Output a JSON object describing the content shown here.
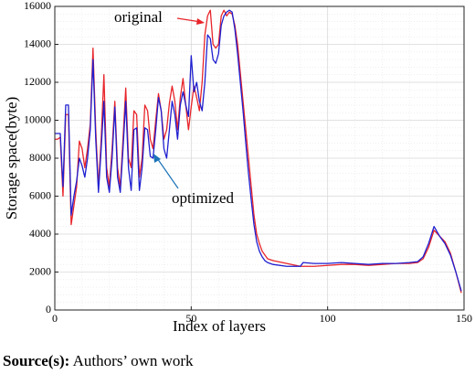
{
  "chart_data": {
    "type": "line",
    "xlabel": "Index of layers",
    "ylabel": "Storage space(byte)",
    "xlim": [
      0,
      150
    ],
    "ylim": [
      0,
      16000
    ],
    "xticks": [
      0,
      50,
      100,
      150
    ],
    "yticks": [
      0,
      2000,
      4000,
      6000,
      8000,
      10000,
      12000,
      14000,
      16000
    ],
    "grid": true,
    "annotations": [
      "original",
      "optimized"
    ],
    "x": [
      0,
      1,
      2,
      3,
      4,
      5,
      6,
      7,
      8,
      9,
      10,
      11,
      12,
      13,
      14,
      15,
      16,
      17,
      18,
      19,
      20,
      21,
      22,
      23,
      24,
      25,
      26,
      27,
      28,
      29,
      30,
      31,
      32,
      33,
      34,
      35,
      36,
      37,
      38,
      39,
      40,
      41,
      42,
      43,
      44,
      45,
      46,
      47,
      48,
      49,
      50,
      51,
      52,
      53,
      54,
      55,
      56,
      57,
      58,
      59,
      60,
      61,
      62,
      63,
      64,
      65,
      66,
      67,
      68,
      69,
      70,
      71,
      72,
      73,
      74,
      75,
      76,
      77,
      78,
      80,
      85,
      90,
      91,
      95,
      100,
      105,
      110,
      115,
      120,
      125,
      130,
      133,
      135,
      137,
      139,
      141,
      143,
      145,
      147,
      149
    ],
    "series": [
      {
        "name": "original",
        "color": "#e8242a",
        "values": [
          9000,
          9000,
          9100,
          6000,
          10300,
          10300,
          4500,
          5500,
          6500,
          8900,
          8500,
          7500,
          8500,
          9800,
          13800,
          9500,
          6500,
          9000,
          12400,
          7500,
          6500,
          8500,
          11000,
          7500,
          6500,
          9000,
          11700,
          8000,
          7500,
          10500,
          10300,
          7000,
          8000,
          10800,
          10500,
          9000,
          8500,
          10000,
          11400,
          10500,
          9000,
          9500,
          10900,
          11800,
          11000,
          9500,
          11200,
          12200,
          10800,
          9500,
          10700,
          11800,
          11200,
          10500,
          12000,
          14500,
          15500,
          15800,
          14000,
          13800,
          14000,
          15500,
          15800,
          15500,
          15700,
          15600,
          15000,
          14000,
          12500,
          11000,
          9500,
          8000,
          6500,
          5000,
          4000,
          3500,
          3100,
          2900,
          2700,
          2600,
          2450,
          2300,
          2300,
          2300,
          2350,
          2400,
          2400,
          2350,
          2400,
          2450,
          2450,
          2500,
          2700,
          3300,
          4200,
          3900,
          3600,
          3000,
          2000,
          900
        ]
      },
      {
        "name": "optimized",
        "color": "#1f1fd0",
        "values": [
          9300,
          9300,
          9300,
          6500,
          10800,
          10800,
          5000,
          6000,
          6800,
          8000,
          7600,
          7000,
          8000,
          9500,
          13200,
          9000,
          6200,
          8500,
          11000,
          7000,
          6200,
          8000,
          10700,
          7000,
          6200,
          8500,
          11000,
          7500,
          6300,
          9500,
          9600,
          6300,
          7500,
          9600,
          9500,
          8100,
          8000,
          9500,
          11200,
          10500,
          8500,
          8000,
          9500,
          11000,
          10300,
          9000,
          10800,
          11500,
          10800,
          10200,
          13400,
          11500,
          12000,
          11000,
          10500,
          12000,
          14500,
          14300,
          13200,
          13000,
          13500,
          15000,
          15500,
          15700,
          15800,
          15700,
          14800,
          13500,
          12000,
          10500,
          8800,
          7200,
          5800,
          4500,
          3600,
          3100,
          2800,
          2600,
          2500,
          2400,
          2300,
          2300,
          2500,
          2450,
          2450,
          2500,
          2450,
          2400,
          2450,
          2450,
          2500,
          2550,
          2800,
          3500,
          4400,
          3900,
          3500,
          2900,
          2000,
          1000
        ]
      }
    ]
  },
  "caption": {
    "label": "Source(s):",
    "text": "Authors’ own work"
  }
}
